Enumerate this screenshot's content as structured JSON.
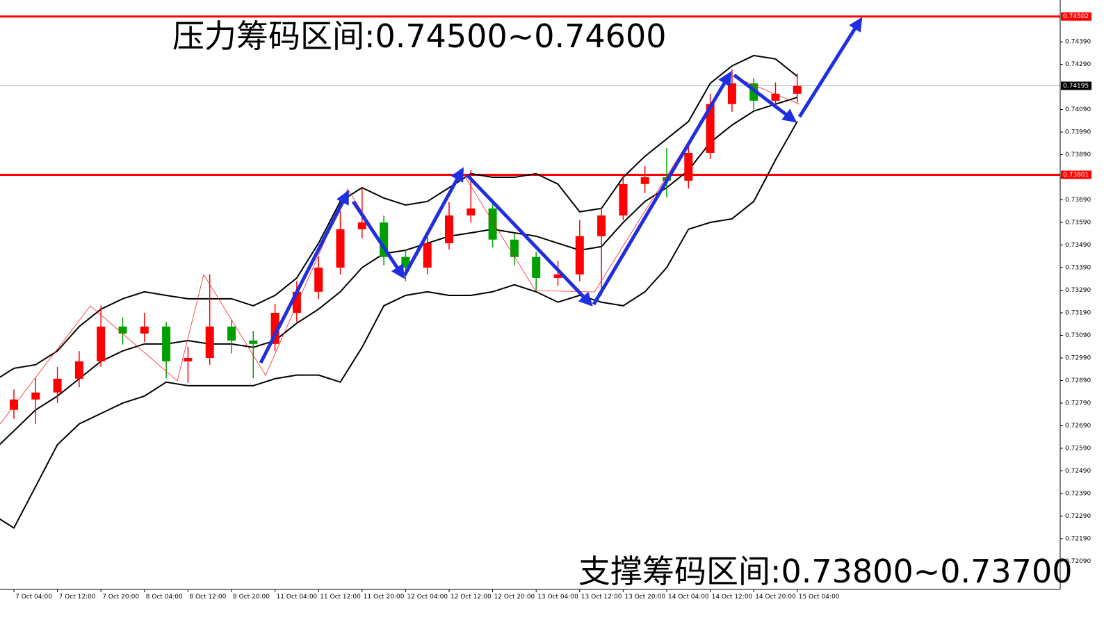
{
  "chart_data": {
    "type": "candlestick",
    "annotations": [
      "压力筹码区间:0.74500~0.74600",
      "支撑筹码区间:0.73800~0.73700"
    ],
    "categories": [
      null,
      "7 Oct 04:00",
      null,
      "7 Oct 12:00",
      null,
      "7 Oct 20:00",
      null,
      "8 Oct 04:00",
      null,
      "8 Oct 12:00",
      null,
      "8 Oct 20:00",
      null,
      "11 Oct 04:00",
      null,
      "11 Oct 12:00",
      null,
      "11 Oct 20:00",
      null,
      "12 Oct 04:00",
      null,
      "12 Oct 12:00",
      null,
      "12 Oct 20:00",
      null,
      "13 Oct 04:00",
      null,
      "13 Oct 12:00",
      null,
      "13 Oct 20:00",
      null,
      "14 Oct 04:00",
      null,
      "14 Oct 12:00",
      null,
      "14 Oct 20:00",
      null,
      "15 Oct 04:00"
    ],
    "open": [
      0.7272,
      0.7276,
      0.72806,
      0.72837,
      0.72898,
      0.72975,
      0.73129,
      0.73098,
      0.73129,
      0.72975,
      0.7299,
      0.73129,
      0.73067,
      0.73052,
      0.7319,
      0.73283,
      0.7339,
      0.7356,
      0.7359,
      0.73437,
      0.7339,
      0.73498,
      0.73621,
      0.73652,
      0.73514,
      0.73437,
      0.73344,
      0.7336,
      0.73529,
      0.73621,
      0.7376,
      0.7379,
      0.73775,
      0.73898,
      0.74114,
      0.74206,
      0.74129,
      0.7416
    ],
    "high": [
      0.728,
      0.7285,
      0.729,
      0.7295,
      0.7302,
      0.73221,
      0.7317,
      0.7319,
      0.7315,
      0.7304,
      0.7336,
      0.7316,
      0.7311,
      0.7323,
      0.7333,
      0.7344,
      0.7364,
      0.73744,
      0.7362,
      0.7347,
      0.7354,
      0.7368,
      0.73821,
      0.7368,
      0.7354,
      0.7346,
      0.7342,
      0.736,
      0.7366,
      0.738,
      0.7384,
      0.7392,
      0.7395,
      0.7416,
      0.74268,
      0.7423,
      0.7421,
      0.7425
    ],
    "low": [
      0.7268,
      0.7272,
      0.72698,
      0.7279,
      0.7286,
      0.7295,
      0.7305,
      0.7306,
      0.729,
      0.7288,
      0.7296,
      0.7301,
      0.729,
      0.7302,
      0.7315,
      0.7325,
      0.7336,
      0.7352,
      0.734,
      0.7333,
      0.7336,
      0.7347,
      0.7359,
      0.7348,
      0.734,
      0.7329,
      0.7331,
      0.7333,
      0.73267,
      0.736,
      0.7372,
      0.737,
      0.7374,
      0.7387,
      0.7408,
      0.7409,
      0.741,
      0.7412
    ],
    "close": [
      0.7276,
      0.72806,
      0.72837,
      0.72898,
      0.72975,
      0.73129,
      0.73098,
      0.73129,
      0.72975,
      0.7299,
      0.73129,
      0.73067,
      0.73052,
      0.7319,
      0.73283,
      0.7339,
      0.7356,
      0.7359,
      0.73437,
      0.7339,
      0.73498,
      0.73621,
      0.73652,
      0.73514,
      0.73437,
      0.73344,
      0.7336,
      0.73529,
      0.73621,
      0.7376,
      0.7379,
      0.73775,
      0.73898,
      0.74114,
      0.74206,
      0.74129,
      0.7416,
      0.74195
    ],
    "up_color": "#ff0000",
    "down_color": "#00a000",
    "series": [
      {
        "color": "#000000",
        "values": [
          0.72883,
          0.72944,
          0.7296,
          0.73021,
          0.73129,
          0.73206,
          0.73252,
          0.73283,
          0.73267,
          0.73252,
          0.73252,
          0.73252,
          0.73221,
          0.73267,
          0.73344,
          0.73498,
          0.73683,
          0.73744,
          0.73698,
          0.73667,
          0.73683,
          0.73744,
          0.73806,
          0.7379,
          0.7379,
          0.73806,
          0.7376,
          0.73637,
          0.73652,
          0.7379,
          0.73883,
          0.7396,
          0.74037,
          0.74206,
          0.74283,
          0.74329,
          0.74314,
          0.74237
        ]
      },
      {
        "color": "#000000",
        "values": [
          0.72575,
          0.72667,
          0.7276,
          0.72821,
          0.72898,
          0.72975,
          0.73021,
          0.73052,
          0.73052,
          0.73067,
          0.73052,
          0.73052,
          0.73037,
          0.73067,
          0.73144,
          0.73206,
          0.73283,
          0.7339,
          0.73452,
          0.73467,
          0.73498,
          0.73529,
          0.73544,
          0.7356,
          0.73544,
          0.73529,
          0.73498,
          0.73467,
          0.73483,
          0.7359,
          0.73683,
          0.73744,
          0.73821,
          0.73944,
          0.74021,
          0.74083,
          0.74114,
          0.74144
        ]
      },
      {
        "color": "#000000",
        "values": [
          0.72298,
          0.72237,
          0.72421,
          0.72606,
          0.72698,
          0.72744,
          0.7279,
          0.72821,
          0.72883,
          0.72867,
          0.72867,
          0.72867,
          0.72867,
          0.72898,
          0.72914,
          0.72914,
          0.72883,
          0.73037,
          0.73221,
          0.73267,
          0.73283,
          0.73267,
          0.73267,
          0.73283,
          0.73314,
          0.73283,
          0.73237,
          0.73267,
          0.73237,
          0.73221,
          0.73283,
          0.7339,
          0.7356,
          0.7359,
          0.73606,
          0.73683,
          0.73867,
          0.74037
        ]
      }
    ],
    "hlines": [
      {
        "value": 0.74502,
        "label": "0.74502",
        "color": "#ff0000"
      },
      {
        "value": 0.73801,
        "label": "0.73801",
        "color": "#ff0000"
      },
      {
        "value": 0.74195,
        "label": "0.74195",
        "color": "#a0a8b0"
      }
    ],
    "ylim": [
      0.71965,
      0.74575
    ],
    "yticks": [
      {
        "value": 0.7439,
        "label": "0.74390"
      },
      {
        "value": 0.7429,
        "label": "0.74290"
      },
      {
        "value": 0.7409,
        "label": "0.74090"
      },
      {
        "value": 0.7399,
        "label": "0.73990"
      },
      {
        "value": 0.7389,
        "label": "0.73890"
      },
      {
        "value": 0.7379,
        "label": "0.73790"
      },
      {
        "value": 0.7369,
        "label": "0.73690"
      },
      {
        "value": 0.7359,
        "label": "0.73590"
      },
      {
        "value": 0.7349,
        "label": "0.73490"
      },
      {
        "value": 0.7339,
        "label": "0.73390"
      },
      {
        "value": 0.7329,
        "label": "0.73290"
      },
      {
        "value": 0.7319,
        "label": "0.73190"
      },
      {
        "value": 0.7309,
        "label": "0.73090"
      },
      {
        "value": 0.7299,
        "label": "0.72990"
      },
      {
        "value": 0.7289,
        "label": "0.72890"
      },
      {
        "value": 0.7279,
        "label": "0.72790"
      },
      {
        "value": 0.7269,
        "label": "0.72690"
      },
      {
        "value": 0.7259,
        "label": "0.72590"
      },
      {
        "value": 0.7249,
        "label": "0.72490"
      },
      {
        "value": 0.7239,
        "label": "0.72390"
      },
      {
        "value": 0.7229,
        "label": "0.72290"
      },
      {
        "value": 0.7219,
        "label": "0.72190"
      },
      {
        "value": 0.7209,
        "label": "0.72090"
      }
    ]
  }
}
